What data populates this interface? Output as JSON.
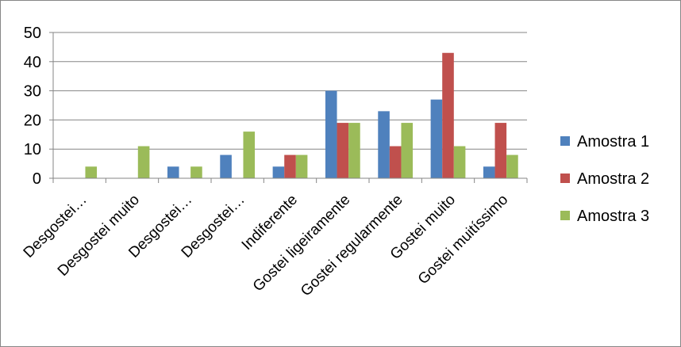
{
  "chart_data": {
    "type": "bar",
    "title": "",
    "xlabel": "",
    "ylabel": "",
    "ylim": [
      0,
      50
    ],
    "yticks": [
      0,
      10,
      20,
      30,
      40,
      50
    ],
    "grid": true,
    "legend_position": "right",
    "categories": [
      "Desgostei…",
      "Desgostei muito",
      "Desgostei…",
      "Desgostei…",
      "Indiferente",
      "Gostei ligeiramente",
      "Gostei regularmente",
      "Gostei muito",
      "Gostei muitíssimo"
    ],
    "series": [
      {
        "name": "Amostra 1",
        "color": "#4F81BD",
        "values": [
          0,
          0,
          4,
          8,
          4,
          30,
          23,
          27,
          4
        ]
      },
      {
        "name": "Amostra 2",
        "color": "#C0504D",
        "values": [
          0,
          0,
          0,
          0,
          8,
          19,
          11,
          43,
          19
        ]
      },
      {
        "name": "Amostra 3",
        "color": "#9BBB59",
        "values": [
          4,
          11,
          4,
          16,
          8,
          19,
          19,
          11,
          8
        ]
      }
    ]
  }
}
